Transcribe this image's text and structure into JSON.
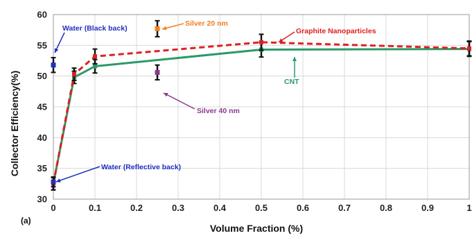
{
  "chart_data": {
    "type": "line",
    "xlabel": "Volume Fraction (%)",
    "ylabel": "Collector Efficiency(%)",
    "panel_label": "(a)",
    "xlim": [
      0,
      1
    ],
    "ylim": [
      30,
      60
    ],
    "x_ticks": [
      "0",
      "0.1",
      "0.2",
      "0.3",
      "0.4",
      "0.5",
      "0.6",
      "0.7",
      "0.8",
      "0.9",
      "1"
    ],
    "y_ticks": [
      "30",
      "35",
      "40",
      "45",
      "50",
      "55",
      "60"
    ],
    "grid": true,
    "series": [
      {
        "name": "Graphite Nanoparticles",
        "color": "#e02020",
        "style": "dashed",
        "x": [
          0,
          0.05,
          0.1,
          0.5,
          1
        ],
        "y": [
          32.5,
          50.3,
          53.2,
          55.5,
          54.5
        ],
        "err": [
          1.0,
          1.0,
          1.2,
          1.3,
          1.2
        ]
      },
      {
        "name": "CNT",
        "color": "#2a9a6a",
        "style": "solid",
        "x": [
          0,
          0.05,
          0.1,
          0.5,
          1
        ],
        "y": [
          32.5,
          49.8,
          51.6,
          54.3,
          54.4
        ],
        "err": [
          1.0,
          1.0,
          1.1,
          1.2,
          1.2
        ]
      }
    ],
    "points": [
      {
        "name": "Water (Black back)",
        "color": "#2030c0",
        "x": 0,
        "y": 51.8,
        "err": 1.2
      },
      {
        "name": "Water (Reflective back)",
        "color": "#2030c0",
        "x": 0,
        "y": 32.8,
        "err": 0.8
      },
      {
        "name": "Silver 20 nm",
        "color": "#f08020",
        "x": 0.25,
        "y": 57.7,
        "err": 1.3
      },
      {
        "name": "Silver 40 nm",
        "color": "#8a3a8a",
        "x": 0.25,
        "y": 50.6,
        "err": 1.2
      }
    ],
    "annotations": [
      {
        "text": "Water (Black back)",
        "color": "#2030c0"
      },
      {
        "text": "Silver 20 nm",
        "color": "#f08020"
      },
      {
        "text": "Graphite Nanoparticles",
        "color": "#e02020"
      },
      {
        "text": "CNT",
        "color": "#2a9a6a"
      },
      {
        "text": "Silver 40 nm",
        "color": "#8a3a8a"
      },
      {
        "text": "Water (Reflective back)",
        "color": "#2030c0"
      }
    ]
  }
}
